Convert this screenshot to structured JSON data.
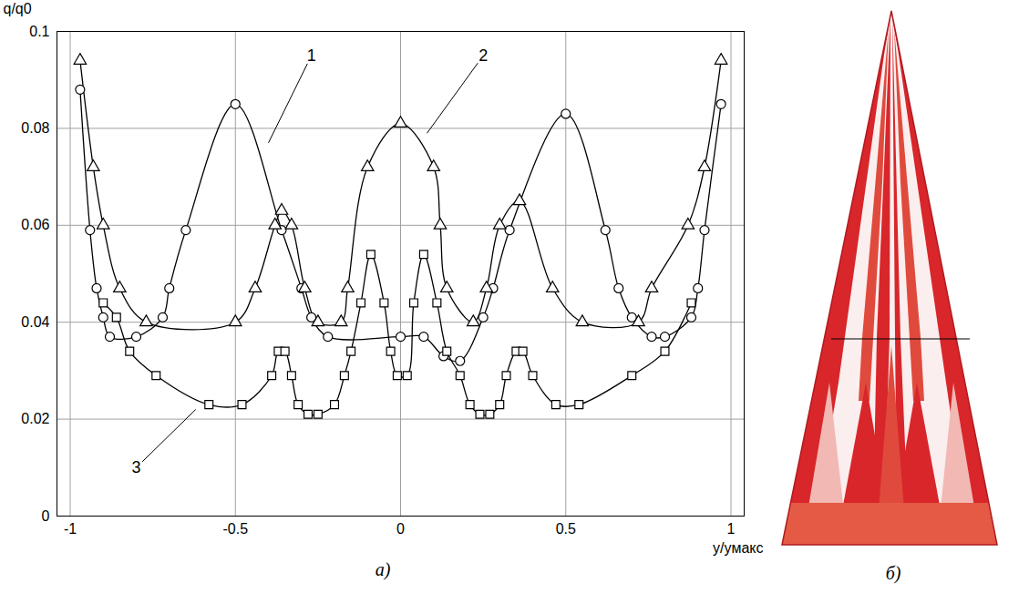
{
  "chart_data": {
    "type": "line",
    "x_label": "y/yмакс",
    "y_label": "q/q0",
    "xlim": [
      -1.04,
      1.04
    ],
    "xticks": [
      -1,
      -0.5,
      0,
      0.5,
      1
    ],
    "ylim": [
      0,
      0.1
    ],
    "yticks": [
      0,
      0.02,
      0.04,
      0.06,
      0.08,
      0.1
    ],
    "grid": true,
    "series": [
      {
        "name": "1",
        "color": "#000000",
        "marker": "circle",
        "line_style": "solid",
        "x": [
          -0.97,
          -0.94,
          -0.92,
          -0.9,
          -0.88,
          -0.8,
          -0.72,
          -0.7,
          -0.65,
          -0.5,
          -0.36,
          -0.3,
          -0.27,
          -0.22,
          0,
          0.07,
          0.13,
          0.18,
          0.25,
          0.28,
          0.33,
          0.5,
          0.62,
          0.66,
          0.7,
          0.76,
          0.8,
          0.88,
          0.9,
          0.92,
          0.97
        ],
        "values": [
          0.088,
          0.059,
          0.047,
          0.041,
          0.037,
          0.037,
          0.041,
          0.047,
          0.059,
          0.085,
          0.059,
          0.047,
          0.041,
          0.037,
          0.037,
          0.037,
          0.033,
          0.032,
          0.041,
          0.047,
          0.059,
          0.083,
          0.059,
          0.047,
          0.041,
          0.037,
          0.037,
          0.041,
          0.047,
          0.059,
          0.085
        ]
      },
      {
        "name": "2",
        "color": "#000000",
        "marker": "triangle",
        "line_style": "solid",
        "x": [
          -0.97,
          -0.93,
          -0.9,
          -0.85,
          -0.77,
          -0.5,
          -0.44,
          -0.38,
          -0.36,
          -0.33,
          -0.29,
          -0.25,
          -0.18,
          -0.16,
          -0.1,
          0,
          0.1,
          0.12,
          0.14,
          0.22,
          0.26,
          0.3,
          0.36,
          0.46,
          0.55,
          0.72,
          0.76,
          0.87,
          0.92,
          0.97
        ],
        "values": [
          0.094,
          0.072,
          0.06,
          0.047,
          0.04,
          0.04,
          0.047,
          0.06,
          0.063,
          0.06,
          0.047,
          0.04,
          0.04,
          0.047,
          0.072,
          0.081,
          0.072,
          0.06,
          0.047,
          0.04,
          0.047,
          0.06,
          0.065,
          0.047,
          0.04,
          0.04,
          0.047,
          0.06,
          0.072,
          0.094
        ]
      },
      {
        "name": "3",
        "color": "#000000",
        "marker": "square",
        "line_style": "solid",
        "x": [
          -0.9,
          -0.86,
          -0.82,
          -0.74,
          -0.58,
          -0.48,
          -0.39,
          -0.37,
          -0.35,
          -0.33,
          -0.31,
          -0.28,
          -0.25,
          -0.2,
          -0.17,
          -0.15,
          -0.12,
          -0.09,
          -0.05,
          -0.03,
          -0.01,
          0.02,
          0.04,
          0.07,
          0.11,
          0.14,
          0.18,
          0.21,
          0.24,
          0.27,
          0.3,
          0.32,
          0.35,
          0.37,
          0.4,
          0.47,
          0.54,
          0.7,
          0.8,
          0.88
        ],
        "values": [
          0.044,
          0.041,
          0.034,
          0.029,
          0.023,
          0.023,
          0.029,
          0.034,
          0.034,
          0.029,
          0.023,
          0.021,
          0.021,
          0.023,
          0.029,
          0.034,
          0.044,
          0.054,
          0.044,
          0.034,
          0.029,
          0.029,
          0.044,
          0.054,
          0.044,
          0.034,
          0.029,
          0.023,
          0.021,
          0.021,
          0.023,
          0.029,
          0.034,
          0.034,
          0.029,
          0.023,
          0.023,
          0.029,
          0.034,
          0.044
        ]
      }
    ],
    "annotations": [
      {
        "text": "1",
        "x": -0.27,
        "y": 0.095,
        "to": [
          -0.4,
          0.077
        ]
      },
      {
        "text": "2",
        "x": 0.25,
        "y": 0.095,
        "to": [
          0.08,
          0.079
        ]
      },
      {
        "text": "3",
        "x": -0.8,
        "y": 0.01,
        "to": [
          -0.62,
          0.022
        ]
      }
    ]
  },
  "panel_labels": [
    "а)",
    "б)"
  ]
}
